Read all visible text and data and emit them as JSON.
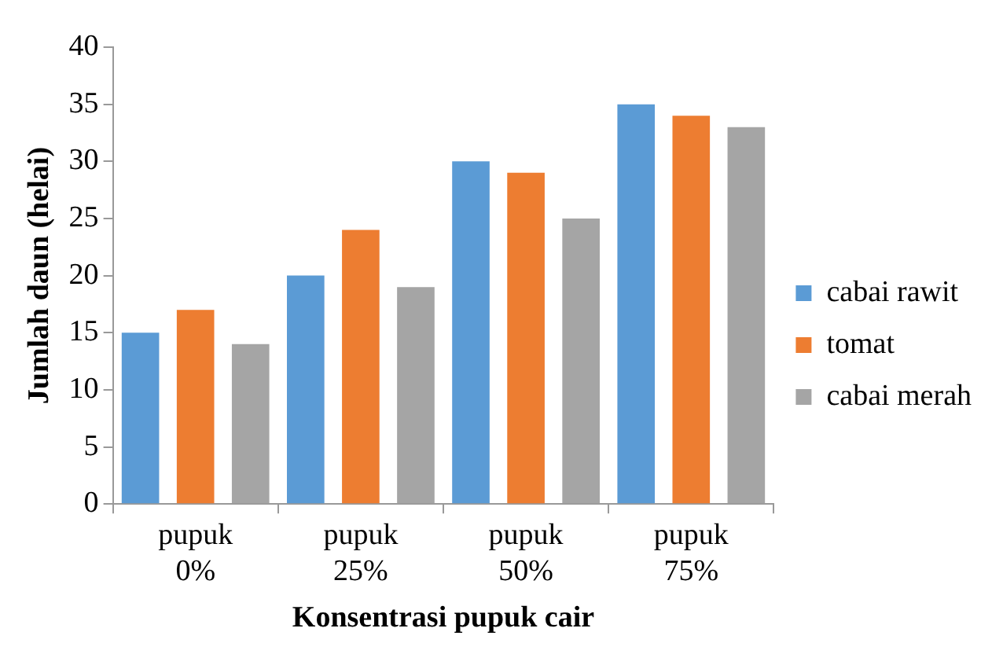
{
  "chart_data": {
    "type": "bar",
    "xlabel": "Konsentrasi pupuk cair",
    "ylabel": "Jumlah daun (helai)",
    "categories": [
      "pupuk 0%",
      "pupuk 25%",
      "pupuk 50%",
      "pupuk 75%"
    ],
    "series": [
      {
        "name": "cabai rawit",
        "color": "#5b9bd5",
        "values": [
          15,
          20,
          30,
          35
        ]
      },
      {
        "name": "tomat",
        "color": "#ed7d31",
        "values": [
          17,
          24,
          29,
          34
        ]
      },
      {
        "name": "cabai merah",
        "color": "#a5a5a5",
        "values": [
          14,
          19,
          25,
          33
        ]
      }
    ],
    "ylim": [
      0,
      40
    ],
    "yticks": [
      0,
      5,
      10,
      15,
      20,
      25,
      30,
      35,
      40
    ],
    "grid": false,
    "legend": "right"
  }
}
